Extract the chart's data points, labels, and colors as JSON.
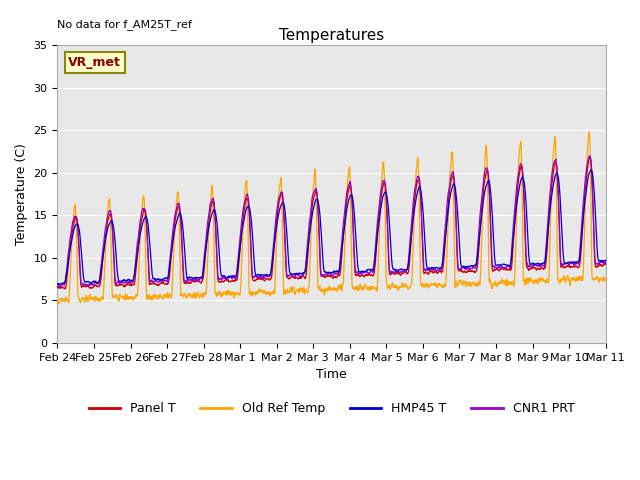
{
  "title": "Temperatures",
  "xlabel": "Time",
  "ylabel": "Temperature (C)",
  "ylim": [
    0,
    35
  ],
  "yticks": [
    0,
    5,
    10,
    15,
    20,
    25,
    30,
    35
  ],
  "xlabels": [
    "Feb 24",
    "Feb 25",
    "Feb 26",
    "Feb 27",
    "Feb 28",
    "Mar 1",
    "Mar 2",
    "Mar 3",
    "Mar 4",
    "Mar 5",
    "Mar 6",
    "Mar 7",
    "Mar 8",
    "Mar 9",
    "Mar 10",
    "Mar 11"
  ],
  "annotation_text": "No data for f_AM25T_ref",
  "legend_entries": [
    "Panel T",
    "Old Ref Temp",
    "HMP45 T",
    "CNR1 PRT"
  ],
  "legend_colors": [
    "#cc0000",
    "#ffa500",
    "#0000cc",
    "#9900cc"
  ],
  "vr_met_label": "VR_met",
  "line_colors": {
    "panel_t": "#cc0000",
    "old_ref_temp": "#ffa500",
    "hmp45_t": "#0000cc",
    "cnr1_prt": "#9900cc"
  },
  "background_color": "#e8e8e8",
  "title_fontsize": 11,
  "axis_fontsize": 9,
  "tick_fontsize": 8
}
